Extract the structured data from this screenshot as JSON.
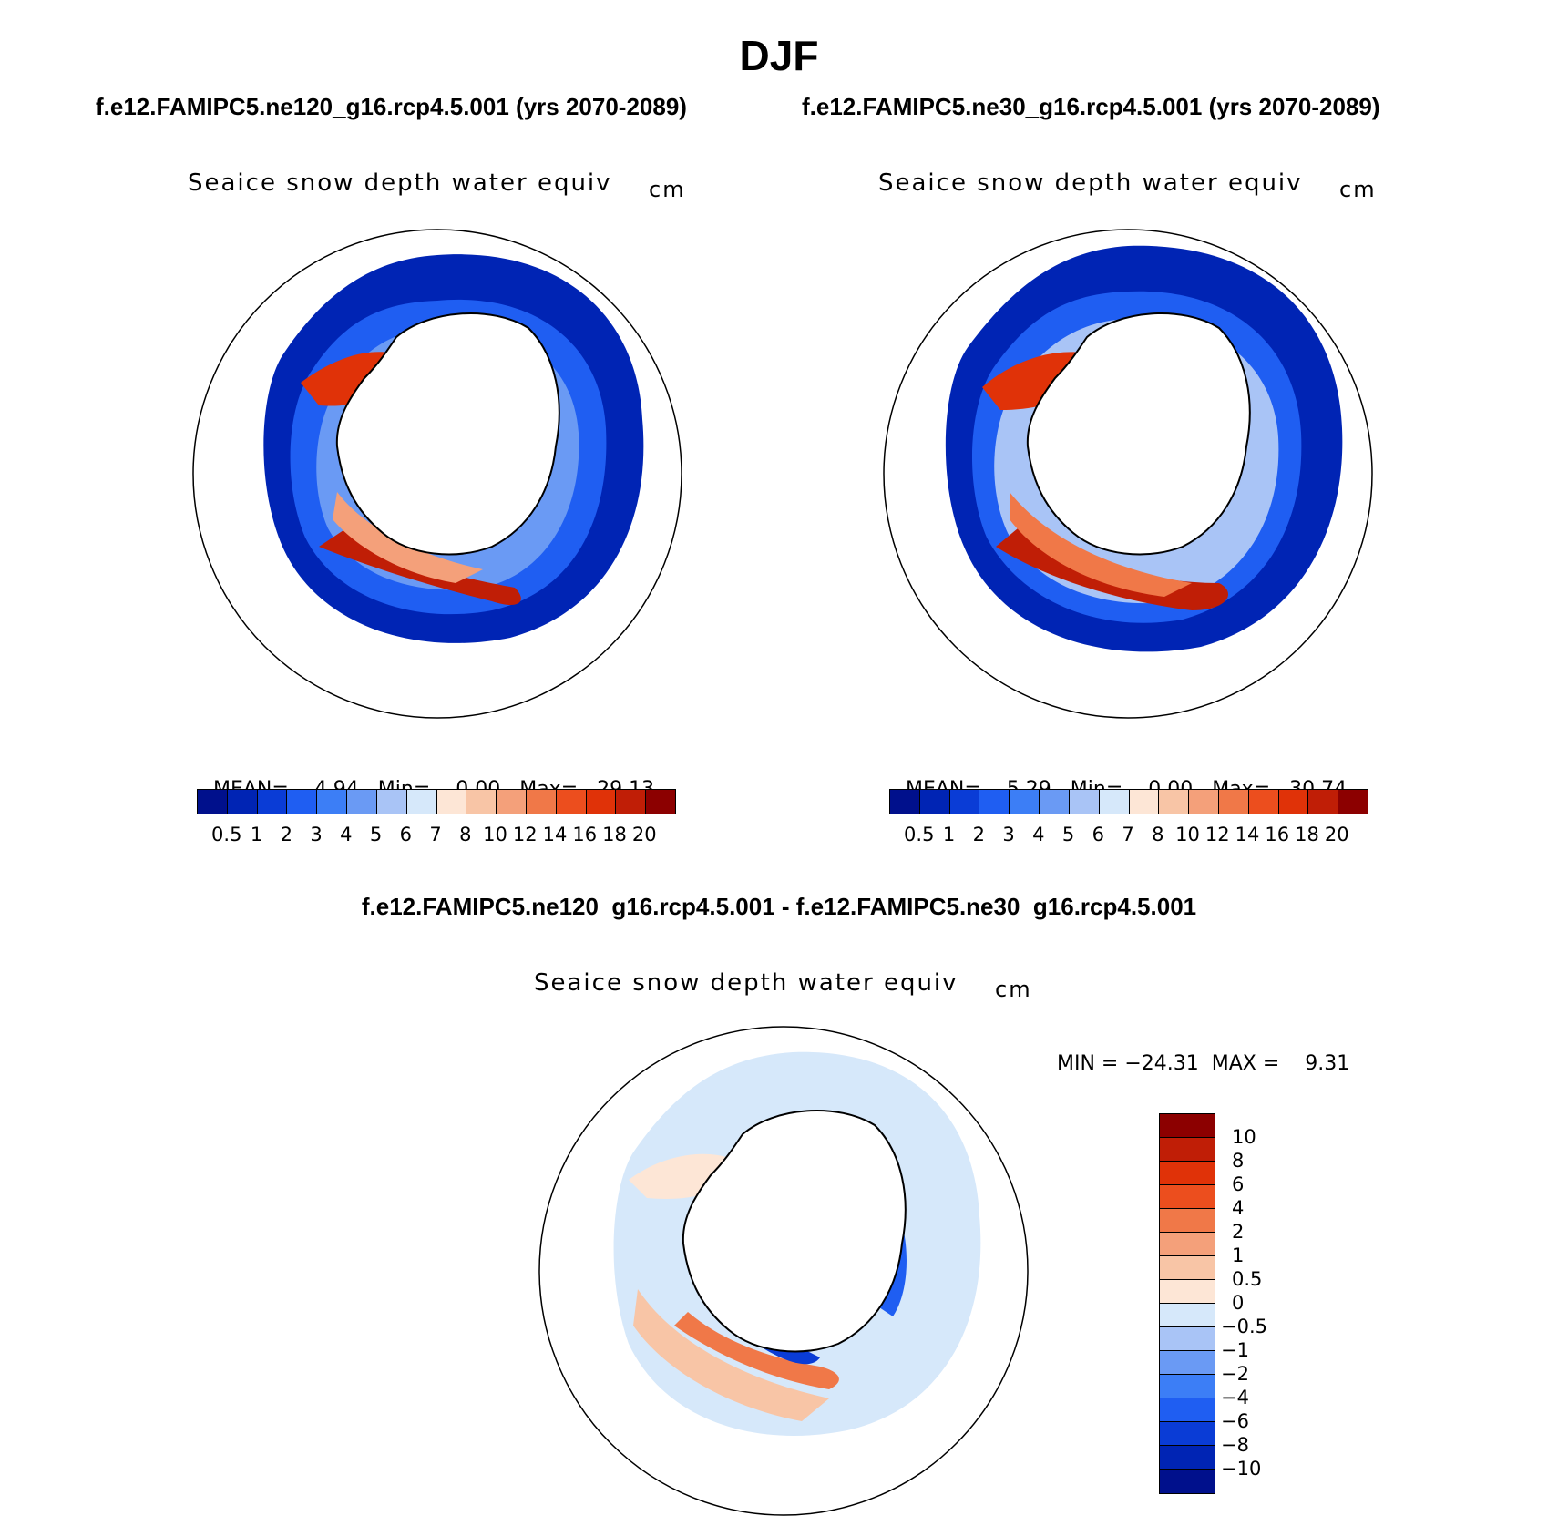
{
  "title": "DJF",
  "case_titles": {
    "left": "f.e12.FAMIPC5.ne120_g16.rcp4.5.001 (yrs 2070-2089)",
    "right": "f.e12.FAMIPC5.ne30_g16.rcp4.5.001 (yrs 2070-2089)"
  },
  "difference_title": "f.e12.FAMIPC5.ne120_g16.rcp4.5.001 - f.e12.FAMIPC5.ne30_g16.rcp4.5.001",
  "panels": [
    {
      "id": "ne120",
      "variable": "Seaice snow depth water equiv",
      "units": "cm",
      "stats": {
        "mean_label": "MEAN=",
        "mean": "4.94",
        "min_label": "Min=",
        "min": "0.00",
        "max_label": "Max=",
        "max": "29.13"
      }
    },
    {
      "id": "ne30",
      "variable": "Seaice snow depth water equiv",
      "units": "cm",
      "stats": {
        "mean_label": "MEAN=",
        "mean": "5.29",
        "min_label": "Min=",
        "min": "0.00",
        "max_label": "Max=",
        "max": "30.74"
      }
    },
    {
      "id": "difference",
      "variable": "Seaice snow depth water equiv",
      "units": "cm",
      "stats_text": "MIN = −24.31  MAX =    9.31"
    }
  ],
  "colorbar_main": {
    "labels": [
      "0.5",
      "1",
      "2",
      "3",
      "4",
      "5",
      "6",
      "7",
      "8",
      "10",
      "12",
      "14",
      "16",
      "18",
      "20"
    ],
    "colors": [
      "#00108c",
      "#0024b4",
      "#0a3cd6",
      "#1f5ef2",
      "#3c7ef6",
      "#6a9af4",
      "#a9c4f6",
      "#d6e8fa",
      "#fde6d6",
      "#f8c5a6",
      "#f4a07a",
      "#f07848",
      "#ec4e1e",
      "#e03208",
      "#c01e06",
      "#8c0000"
    ]
  },
  "colorbar_diff": {
    "labels": [
      "10",
      "8",
      "6",
      "4",
      "2",
      "1",
      "0.5",
      "0",
      "−0.5",
      "−1",
      "−2",
      "−4",
      "−6",
      "−8",
      "−10"
    ],
    "colors": [
      "#8c0000",
      "#c01e06",
      "#e03208",
      "#ec4e1e",
      "#f07848",
      "#f4a07a",
      "#f8c5a6",
      "#fde6d6",
      "#d6e8fa",
      "#a9c4f6",
      "#6a9af4",
      "#3c7ef6",
      "#1f5ef2",
      "#0a3cd6",
      "#0024b4",
      "#00108c"
    ]
  },
  "colors": {
    "deep_blue": "#00108c",
    "mid_blue": "#1f5ef2",
    "light_blue": "#d6e8fa",
    "peach": "#fde6d6",
    "orange": "#f07848",
    "dark_red": "#8c0000"
  }
}
